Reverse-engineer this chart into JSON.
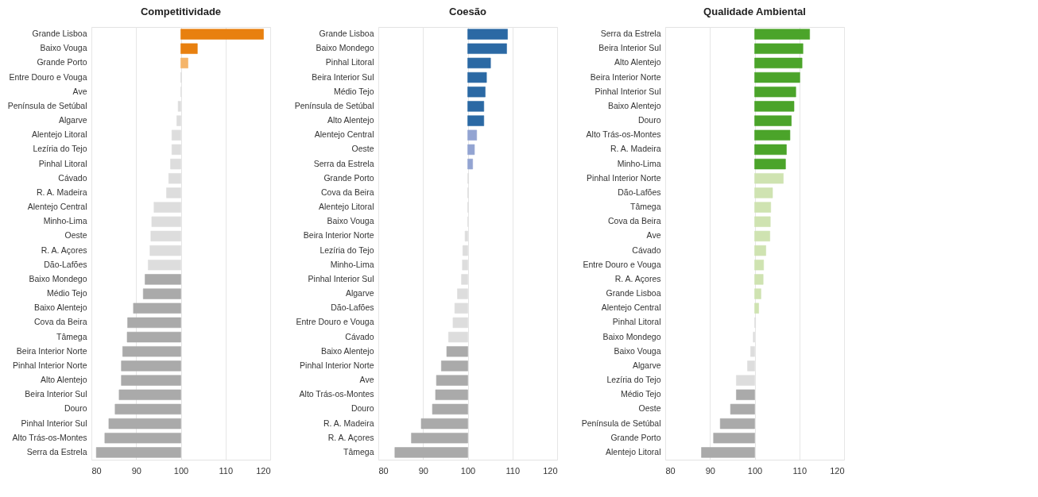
{
  "chart_data": [
    {
      "type": "bar",
      "orientation": "horizontal",
      "title": "Competitividade",
      "categories": [
        "Grande Lisboa",
        "Baixo Vouga",
        "Grande Porto",
        "Entre Douro e Vouga",
        "Ave",
        "Península de Setúbal",
        "Algarve",
        "Alentejo Litoral",
        "Lezíria do Tejo",
        "Pinhal Litoral",
        "Cávado",
        "R. A. Madeira",
        "Alentejo Central",
        "Minho-Lima",
        "Oeste",
        "R. A. Açores",
        "Dão-Lafões",
        "Baixo Mondego",
        "Médio Tejo",
        "Baixo Alentejo",
        "Cova da Beira",
        "Tâmega",
        "Beira Interior Norte",
        "Pinhal Interior Norte",
        "Alto Alentejo",
        "Beira Interior Sul",
        "Douro",
        "Pinhal Interior Sul",
        "Alto Trás-os-Montes",
        "Serra da Estrela"
      ],
      "values": [
        18.5,
        3.7,
        1.6,
        0.1,
        0,
        -0.6,
        -0.9,
        -2.0,
        -2.0,
        -2.3,
        -2.7,
        -3.2,
        -6.0,
        -6.5,
        -6.7,
        -6.9,
        -7.3,
        -8.0,
        -8.4,
        -10.6,
        -11.9,
        -12.0,
        -13.0,
        -13.3,
        -13.3,
        -13.8,
        -14.7,
        -16.1,
        -17.0,
        -18.9
      ],
      "base": [
        100,
        100,
        100,
        100,
        100,
        100,
        100,
        100,
        100,
        100,
        100,
        100,
        100,
        100,
        100,
        100,
        100,
        100,
        100,
        100,
        100,
        100,
        100,
        100,
        100,
        100,
        100,
        100,
        100,
        100
      ],
      "colors": [
        "#e8800f",
        "#e8800f",
        "#f5b56a",
        "#dddddd",
        "#dddddd",
        "#dddddd",
        "#dddddd",
        "#dddddd",
        "#dddddd",
        "#dddddd",
        "#dddddd",
        "#dddddd",
        "#dddddd",
        "#dddddd",
        "#dddddd",
        "#dddddd",
        "#dddddd",
        "#aaaaaa",
        "#aaaaaa",
        "#aaaaaa",
        "#aaaaaa",
        "#aaaaaa",
        "#aaaaaa",
        "#aaaaaa",
        "#aaaaaa",
        "#aaaaaa",
        "#aaaaaa",
        "#aaaaaa",
        "#aaaaaa",
        "#aaaaaa"
      ],
      "xlim": [
        80,
        120
      ],
      "xticks": [
        80,
        90,
        100,
        110,
        120
      ],
      "grid": "x"
    },
    {
      "type": "bar",
      "orientation": "horizontal",
      "title": "Coesão",
      "categories": [
        "Grande Lisboa",
        "Baixo Mondego",
        "Pinhal Litoral",
        "Beira Interior Sul",
        "Médio Tejo",
        "Península de Setúbal",
        "Alto Alentejo",
        "Alentejo Central",
        "Oeste",
        "Serra da Estrela",
        "Grande Porto",
        "Cova da Beira",
        "Alentejo Litoral",
        "Baixo Vouga",
        "Beira Interior Norte",
        "Lezíria do Tejo",
        "Minho-Lima",
        "Pinhal Interior Sul",
        "Algarve",
        "Dão-Lafões",
        "Entre Douro e Vouga",
        "Cávado",
        "Baixo Alentejo",
        "Pinhal Interior Norte",
        "Ave",
        "Alto Trás-os-Montes",
        "Douro",
        "R. A. Madeira",
        "R. A. Açores",
        "Tâmega"
      ],
      "values": [
        8.9,
        8.7,
        5.1,
        4.2,
        3.9,
        3.6,
        3.6,
        2.0,
        1.5,
        1.1,
        0.2,
        0.1,
        0.1,
        0,
        -0.6,
        -1.1,
        -1.2,
        -1.4,
        -2.3,
        -2.9,
        -3.3,
        -4.3,
        -4.7,
        -5.9,
        -7.0,
        -7.2,
        -7.9,
        -10.4,
        -12.6,
        -16.3
      ],
      "base": [
        100,
        100,
        100,
        100,
        100,
        100,
        100,
        100,
        100,
        100,
        100,
        100,
        100,
        100,
        100,
        100,
        100,
        100,
        100,
        100,
        100,
        100,
        100,
        100,
        100,
        100,
        100,
        100,
        100,
        100
      ],
      "colors": [
        "#2b69a4",
        "#2b69a4",
        "#2b69a4",
        "#2b69a4",
        "#2b69a4",
        "#2b69a4",
        "#2b69a4",
        "#93a4d2",
        "#93a4d2",
        "#93a4d2",
        "#dddddd",
        "#dddddd",
        "#dddddd",
        "#dddddd",
        "#dddddd",
        "#dddddd",
        "#dddddd",
        "#dddddd",
        "#dddddd",
        "#dddddd",
        "#dddddd",
        "#dddddd",
        "#aaaaaa",
        "#aaaaaa",
        "#aaaaaa",
        "#aaaaaa",
        "#aaaaaa",
        "#aaaaaa",
        "#aaaaaa",
        "#aaaaaa"
      ],
      "xlim": [
        80,
        120
      ],
      "xticks": [
        80,
        90,
        100,
        110,
        120
      ],
      "grid": "x"
    },
    {
      "type": "bar",
      "orientation": "horizontal",
      "title": "Qualidade Ambiental",
      "categories": [
        "Serra da Estrela",
        "Beira Interior Sul",
        "Alto Alentejo",
        "Beira Interior Norte",
        "Pinhal Interior Sul",
        "Baixo Alentejo",
        "Douro",
        "Alto Trás-os-Montes",
        "R. A. Madeira",
        "Minho-Lima",
        "Pinhal Interior Norte",
        "Dão-Lafões",
        "Tâmega",
        "Cova da Beira",
        "Ave",
        "Cávado",
        "Entre Douro e Vouga",
        "R. A. Açores",
        "Grande Lisboa",
        "Alentejo Central",
        "Pinhal Litoral",
        "Baixo Mondego",
        "Baixo Vouga",
        "Algarve",
        "Lezíria do Tejo",
        "Médio Tejo",
        "Oeste",
        "Península de Setúbal",
        "Grande Porto",
        "Alentejo Litoral"
      ],
      "values": [
        12.3,
        10.8,
        10.6,
        10.1,
        9.2,
        8.8,
        8.2,
        7.9,
        7.1,
        6.9,
        6.4,
        4.0,
        3.6,
        3.5,
        3.4,
        2.5,
        2.0,
        1.9,
        1.4,
        0.9,
        0.2,
        -0.3,
        -0.9,
        -1.6,
        -4.1,
        -4.1,
        -5.4,
        -7.7,
        -9.2,
        -11.9
      ],
      "base": [
        100,
        100,
        100,
        100,
        100,
        100,
        100,
        100,
        100,
        100,
        100,
        100,
        100,
        100,
        100,
        100,
        100,
        100,
        100,
        100,
        100,
        100,
        100,
        100,
        100,
        100,
        100,
        100,
        100,
        100
      ],
      "colors": [
        "#4ba42a",
        "#4ba42a",
        "#4ba42a",
        "#4ba42a",
        "#4ba42a",
        "#4ba42a",
        "#4ba42a",
        "#4ba42a",
        "#4ba42a",
        "#4ba42a",
        "#cfe3b1",
        "#cfe3b1",
        "#cfe3b1",
        "#cfe3b1",
        "#cfe3b1",
        "#cfe3b1",
        "#cfe3b1",
        "#cfe3b1",
        "#cfe3b1",
        "#cfe3b1",
        "#dddddd",
        "#dddddd",
        "#dddddd",
        "#dddddd",
        "#dddddd",
        "#aaaaaa",
        "#aaaaaa",
        "#aaaaaa",
        "#aaaaaa",
        "#aaaaaa"
      ],
      "xlim": [
        80,
        120
      ],
      "xticks": [
        80,
        90,
        100,
        110,
        120
      ],
      "grid": "x"
    }
  ]
}
